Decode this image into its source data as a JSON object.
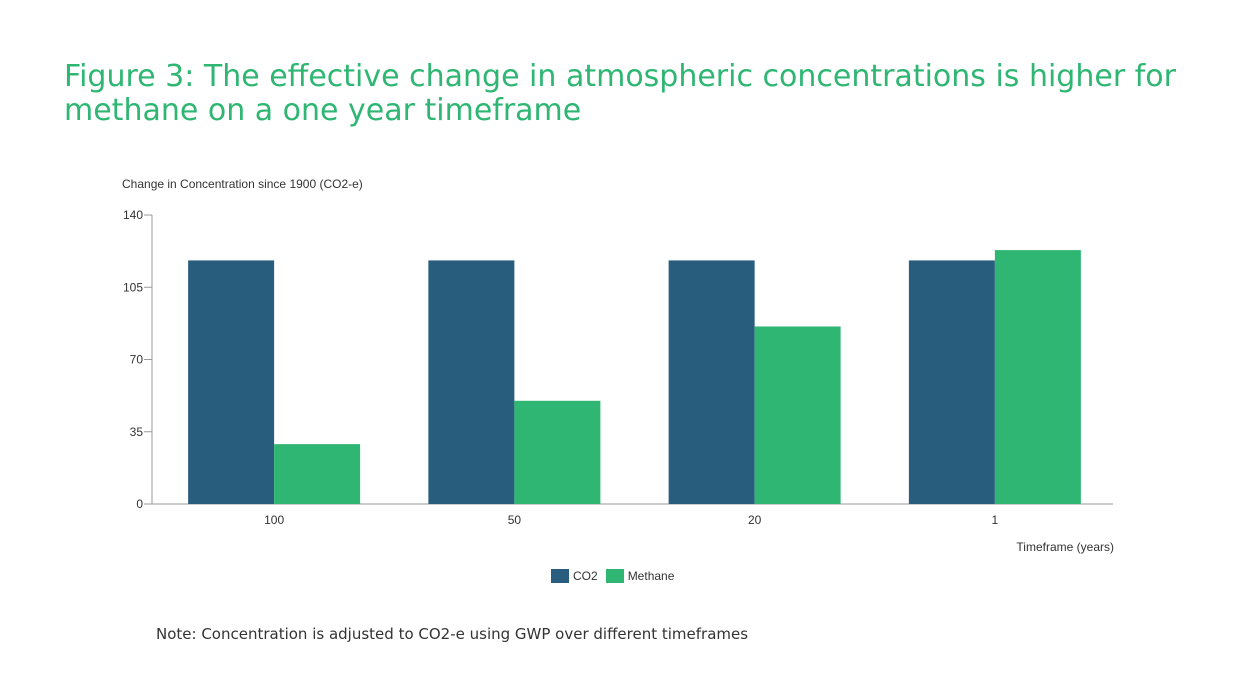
{
  "chart_data": {
    "type": "bar",
    "title": "Figure 3: The effective change in atmospheric concentrations is higher for methane on a one year timeframe",
    "ylabel": "Change in Concentration since 1900 (CO2-e)",
    "xlabel": "Timeframe (years)",
    "categories": [
      "100",
      "50",
      "20",
      "1"
    ],
    "series": [
      {
        "name": "CO2",
        "color": "#285d7d",
        "values": [
          118,
          118,
          118,
          118
        ]
      },
      {
        "name": "Methane",
        "color": "#2fb673",
        "values": [
          29,
          50,
          86,
          123
        ]
      }
    ],
    "ylim": [
      0,
      140
    ],
    "yticks": [
      0,
      35,
      70,
      105,
      140
    ],
    "grid": false,
    "legend_position": "bottom"
  },
  "note": "Note: Concentration is adjusted to CO2-e using GWP over different timeframes"
}
